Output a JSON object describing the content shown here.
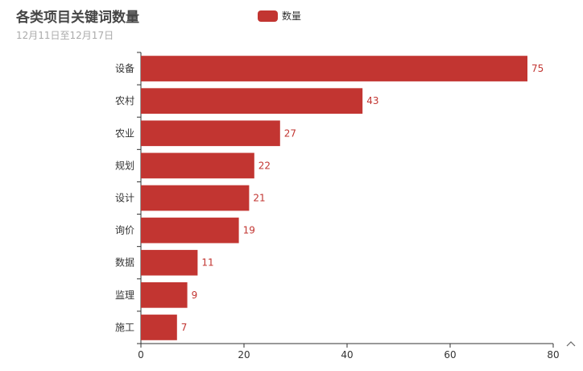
{
  "chart_data": {
    "type": "bar",
    "orientation": "horizontal",
    "title": "各类项目关键词数量",
    "subtitle": "12月11日至12月17日",
    "categories": [
      "设备",
      "农村",
      "农业",
      "规划",
      "设计",
      "询价",
      "数据",
      "监理",
      "施工"
    ],
    "series": [
      {
        "name": "数量",
        "values": [
          75,
          43,
          27,
          22,
          21,
          19,
          11,
          9,
          7
        ],
        "color": "#c23531"
      }
    ],
    "xlim": [
      0,
      80
    ],
    "xticks": [
      0,
      20,
      40,
      60,
      80
    ],
    "grid": false,
    "legend_position": "top-center",
    "data_labels": "right"
  },
  "ui": {
    "scroll_icon": "chevron-up-icon"
  }
}
